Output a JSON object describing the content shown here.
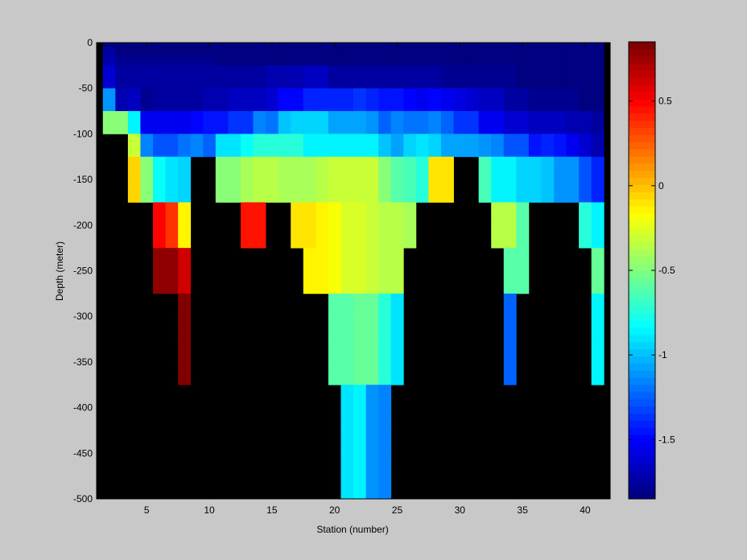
{
  "chart_data": {
    "type": "heatmap",
    "title": "",
    "xlabel": "Station (number)",
    "ylabel": "Depth (meter)",
    "xlim": [
      1,
      42
    ],
    "ylim": [
      -500,
      0
    ],
    "grid": false,
    "x_ticks": [
      5,
      10,
      15,
      20,
      25,
      30,
      35,
      40
    ],
    "y_ticks": [
      0,
      -50,
      -100,
      -150,
      -200,
      -250,
      -300,
      -350,
      -400,
      -450,
      -500
    ],
    "background_color": "#000000",
    "figure_background": "#c8c8c8",
    "colormap": "jet",
    "colorbar": {
      "position": "right",
      "clim": [
        -1.85,
        0.85
      ],
      "ticks": [
        0.5,
        0,
        -0.5,
        -1,
        -1.5
      ]
    },
    "stations": [
      2,
      3,
      4,
      5,
      6,
      7,
      8,
      9,
      10,
      11,
      12,
      13,
      14,
      15,
      16,
      17,
      18,
      19,
      20,
      21,
      22,
      23,
      24,
      25,
      26,
      27,
      28,
      29,
      30,
      31,
      32,
      33,
      34,
      35,
      36,
      37,
      38,
      39,
      40,
      41
    ],
    "depth_bin_edges": [
      0,
      -5,
      -15,
      -25,
      -50,
      -75,
      -100,
      -125,
      -150,
      -175,
      -200,
      -225,
      -250,
      -275,
      -300,
      -325,
      -350,
      -375,
      -400,
      -425,
      -450,
      -475,
      -500
    ],
    "rows": [
      [
        -1.85,
        -1.85,
        -1.85,
        -1.85,
        -1.85,
        -1.85,
        -1.85,
        -1.85,
        -1.85,
        -1.85,
        -1.85,
        -1.85,
        -1.85,
        -1.85,
        -1.85,
        -1.85,
        -1.85,
        -1.85,
        -1.85,
        -1.85,
        -1.85,
        -1.85,
        -1.85,
        -1.85,
        -1.85,
        -1.85,
        -1.85,
        -1.85,
        -1.85,
        -1.85,
        -1.85,
        -1.85,
        -1.85,
        -1.85,
        -1.85,
        -1.85,
        -1.85,
        -1.85,
        -1.85,
        -1.85
      ],
      [
        -1.75,
        -1.85,
        -1.85,
        -1.85,
        -1.85,
        -1.85,
        -1.85,
        -1.85,
        -1.85,
        -1.85,
        -1.85,
        -1.85,
        -1.85,
        -1.85,
        -1.85,
        -1.85,
        -1.85,
        -1.85,
        -1.85,
        -1.85,
        -1.85,
        -1.85,
        -1.85,
        -1.85,
        -1.85,
        -1.85,
        -1.85,
        -1.85,
        -1.85,
        -1.85,
        -1.85,
        -1.85,
        -1.85,
        -1.85,
        -1.85,
        -1.85,
        -1.85,
        -1.85,
        -1.85,
        -1.85
      ],
      [
        -1.7,
        -1.8,
        -1.8,
        -1.8,
        -1.8,
        -1.8,
        -1.8,
        -1.8,
        -1.8,
        -1.85,
        -1.85,
        -1.85,
        -1.85,
        -1.85,
        -1.85,
        -1.85,
        -1.85,
        -1.85,
        -1.85,
        -1.85,
        -1.85,
        -1.85,
        -1.85,
        -1.85,
        -1.85,
        -1.85,
        -1.85,
        -1.85,
        -1.85,
        -1.85,
        -1.85,
        -1.85,
        -1.85,
        -1.85,
        -1.85,
        -1.85,
        -1.85,
        -1.85,
        -1.85,
        -1.85
      ],
      [
        -1.6,
        -1.75,
        -1.75,
        -1.75,
        -1.75,
        -1.75,
        -1.75,
        -1.75,
        -1.75,
        -1.75,
        -1.75,
        -1.75,
        -1.75,
        -1.72,
        -1.7,
        -1.7,
        -1.65,
        -1.65,
        -1.75,
        -1.75,
        -1.75,
        -1.75,
        -1.75,
        -1.75,
        -1.75,
        -1.75,
        -1.75,
        -1.8,
        -1.8,
        -1.8,
        -1.8,
        -1.8,
        -1.8,
        -1.85,
        -1.85,
        -1.85,
        -1.85,
        -1.85,
        -1.85,
        -1.85
      ],
      [
        -1.1,
        -1.7,
        -1.65,
        -1.8,
        -1.75,
        -1.75,
        -1.75,
        -1.75,
        -1.72,
        -1.72,
        -1.68,
        -1.68,
        -1.65,
        -1.6,
        -1.5,
        -1.5,
        -1.42,
        -1.4,
        -1.4,
        -1.4,
        -1.35,
        -1.4,
        -1.45,
        -1.45,
        -1.5,
        -1.55,
        -1.5,
        -1.55,
        -1.58,
        -1.6,
        -1.65,
        -1.65,
        -1.75,
        -1.75,
        -1.78,
        -1.78,
        -1.8,
        -1.8,
        -1.85,
        -1.85
      ],
      [
        -0.5,
        -0.5,
        -0.85,
        -1.55,
        -1.55,
        -1.55,
        -1.55,
        -1.5,
        -1.45,
        -1.45,
        -1.35,
        -1.35,
        -1.15,
        -1.2,
        -1.0,
        -0.95,
        -0.95,
        -0.95,
        -1.05,
        -1.05,
        -1.05,
        -1.1,
        -1.25,
        -1.15,
        -1.2,
        -1.2,
        -1.15,
        -1.25,
        -1.35,
        -1.35,
        -1.55,
        -1.55,
        -1.6,
        -1.6,
        -1.65,
        -1.65,
        -1.65,
        -1.7,
        -1.7,
        -1.75
      ],
      [
        null,
        null,
        -0.3,
        -1.15,
        -1.3,
        -1.3,
        -1.2,
        -1.15,
        -1.25,
        -0.9,
        -0.9,
        -0.8,
        -0.75,
        -0.75,
        -0.75,
        -0.75,
        -0.85,
        -0.85,
        -0.85,
        -0.85,
        -0.85,
        -0.85,
        -1.0,
        -1.05,
        -0.95,
        -0.9,
        -0.95,
        -1.05,
        -1.05,
        -1.05,
        -1.1,
        -1.15,
        -1.3,
        -1.3,
        -1.45,
        -1.4,
        -1.45,
        -1.55,
        -1.6,
        -1.7
      ],
      [
        null,
        null,
        -0.05,
        -0.5,
        -0.8,
        -0.9,
        -0.95,
        null,
        null,
        -0.5,
        -0.5,
        -0.4,
        -0.35,
        -0.35,
        -0.4,
        -0.4,
        -0.4,
        -0.35,
        -0.3,
        -0.3,
        -0.3,
        -0.3,
        -0.5,
        -0.6,
        -0.65,
        -0.75,
        -0.1,
        -0.1,
        null,
        null,
        -0.65,
        -0.85,
        -0.85,
        -0.95,
        -0.95,
        -1.0,
        -1.1,
        -1.1,
        -1.3,
        -1.4
      ],
      [
        null,
        null,
        -0.05,
        -0.5,
        -0.8,
        -0.9,
        -0.95,
        null,
        null,
        -0.5,
        -0.5,
        -0.4,
        -0.35,
        -0.35,
        -0.4,
        -0.4,
        -0.4,
        -0.35,
        -0.3,
        -0.3,
        -0.3,
        -0.3,
        -0.5,
        -0.6,
        -0.65,
        -0.75,
        -0.1,
        -0.1,
        null,
        null,
        -0.65,
        -0.85,
        -0.85,
        -0.95,
        -0.95,
        -1.0,
        -1.1,
        -1.1,
        -1.3,
        -1.4
      ],
      [
        null,
        null,
        null,
        null,
        0.5,
        0.35,
        -0.15,
        null,
        null,
        null,
        null,
        0.45,
        0.45,
        null,
        null,
        -0.1,
        -0.1,
        -0.15,
        -0.2,
        -0.25,
        -0.25,
        -0.3,
        -0.35,
        -0.35,
        -0.4,
        null,
        null,
        null,
        null,
        null,
        null,
        -0.35,
        -0.35,
        -0.6,
        null,
        null,
        null,
        null,
        -0.75,
        -0.85
      ],
      [
        null,
        null,
        null,
        null,
        0.5,
        0.35,
        -0.15,
        null,
        null,
        null,
        null,
        0.45,
        0.45,
        null,
        null,
        -0.1,
        -0.1,
        -0.15,
        -0.2,
        -0.25,
        -0.25,
        -0.3,
        -0.35,
        -0.35,
        -0.4,
        null,
        null,
        null,
        null,
        null,
        null,
        -0.35,
        -0.35,
        -0.6,
        null,
        null,
        null,
        null,
        -0.75,
        -0.85
      ],
      [
        null,
        null,
        null,
        null,
        0.8,
        0.78,
        0.6,
        null,
        null,
        null,
        null,
        null,
        null,
        null,
        null,
        null,
        -0.15,
        -0.15,
        -0.2,
        -0.25,
        -0.25,
        -0.3,
        -0.35,
        -0.35,
        null,
        null,
        null,
        null,
        null,
        null,
        null,
        null,
        -0.6,
        -0.6,
        null,
        null,
        null,
        null,
        null,
        -0.55
      ],
      [
        null,
        null,
        null,
        null,
        0.8,
        0.78,
        0.6,
        null,
        null,
        null,
        null,
        null,
        null,
        null,
        null,
        null,
        -0.15,
        -0.15,
        -0.2,
        -0.25,
        -0.25,
        -0.3,
        -0.35,
        -0.35,
        null,
        null,
        null,
        null,
        null,
        null,
        null,
        null,
        -0.6,
        -0.6,
        null,
        null,
        null,
        null,
        null,
        -0.55
      ],
      [
        null,
        null,
        null,
        null,
        null,
        null,
        0.82,
        null,
        null,
        null,
        null,
        null,
        null,
        null,
        null,
        null,
        null,
        null,
        -0.6,
        -0.6,
        -0.55,
        -0.55,
        -0.75,
        -0.9,
        null,
        null,
        null,
        null,
        null,
        null,
        null,
        null,
        -1.25,
        null,
        null,
        null,
        null,
        null,
        null,
        -0.85
      ],
      [
        null,
        null,
        null,
        null,
        null,
        null,
        0.82,
        null,
        null,
        null,
        null,
        null,
        null,
        null,
        null,
        null,
        null,
        null,
        -0.6,
        -0.6,
        -0.55,
        -0.55,
        -0.75,
        -0.9,
        null,
        null,
        null,
        null,
        null,
        null,
        null,
        null,
        -1.25,
        null,
        null,
        null,
        null,
        null,
        null,
        -0.85
      ],
      [
        null,
        null,
        null,
        null,
        null,
        null,
        0.82,
        null,
        null,
        null,
        null,
        null,
        null,
        null,
        null,
        null,
        null,
        null,
        -0.6,
        -0.6,
        -0.55,
        -0.55,
        -0.75,
        -0.9,
        null,
        null,
        null,
        null,
        null,
        null,
        null,
        null,
        -1.25,
        null,
        null,
        null,
        null,
        null,
        null,
        -0.85
      ],
      [
        null,
        null,
        null,
        null,
        null,
        null,
        0.82,
        null,
        null,
        null,
        null,
        null,
        null,
        null,
        null,
        null,
        null,
        null,
        -0.6,
        -0.6,
        -0.55,
        -0.55,
        -0.75,
        -0.9,
        null,
        null,
        null,
        null,
        null,
        null,
        null,
        null,
        -1.25,
        null,
        null,
        null,
        null,
        null,
        null,
        -0.85
      ],
      [
        null,
        null,
        null,
        null,
        null,
        null,
        null,
        null,
        null,
        null,
        null,
        null,
        null,
        null,
        null,
        null,
        null,
        null,
        null,
        -0.9,
        -0.85,
        -1.1,
        -1.15,
        null,
        null,
        null,
        null,
        null,
        null,
        null,
        null,
        null,
        null,
        null,
        null,
        null,
        null,
        null,
        null,
        null
      ],
      [
        null,
        null,
        null,
        null,
        null,
        null,
        null,
        null,
        null,
        null,
        null,
        null,
        null,
        null,
        null,
        null,
        null,
        null,
        null,
        -0.9,
        -0.85,
        -1.1,
        -1.15,
        null,
        null,
        null,
        null,
        null,
        null,
        null,
        null,
        null,
        null,
        null,
        null,
        null,
        null,
        null,
        null,
        null
      ],
      [
        null,
        null,
        null,
        null,
        null,
        null,
        null,
        null,
        null,
        null,
        null,
        null,
        null,
        null,
        null,
        null,
        null,
        null,
        null,
        -0.9,
        -0.85,
        -1.1,
        -1.15,
        null,
        null,
        null,
        null,
        null,
        null,
        null,
        null,
        null,
        null,
        null,
        null,
        null,
        null,
        null,
        null,
        null
      ],
      [
        null,
        null,
        null,
        null,
        null,
        null,
        null,
        null,
        null,
        null,
        null,
        null,
        null,
        null,
        null,
        null,
        null,
        null,
        null,
        -0.9,
        -0.85,
        -1.1,
        -1.15,
        null,
        null,
        null,
        null,
        null,
        null,
        null,
        null,
        null,
        null,
        null,
        null,
        null,
        null,
        null,
        null,
        null
      ],
      [
        null,
        null,
        null,
        null,
        null,
        null,
        null,
        null,
        null,
        null,
        null,
        null,
        null,
        null,
        null,
        null,
        null,
        null,
        null,
        -0.9,
        -0.85,
        -1.1,
        -1.15,
        null,
        null,
        null,
        null,
        null,
        null,
        null,
        null,
        null,
        null,
        null,
        null,
        null,
        null,
        null,
        null,
        null
      ]
    ]
  }
}
